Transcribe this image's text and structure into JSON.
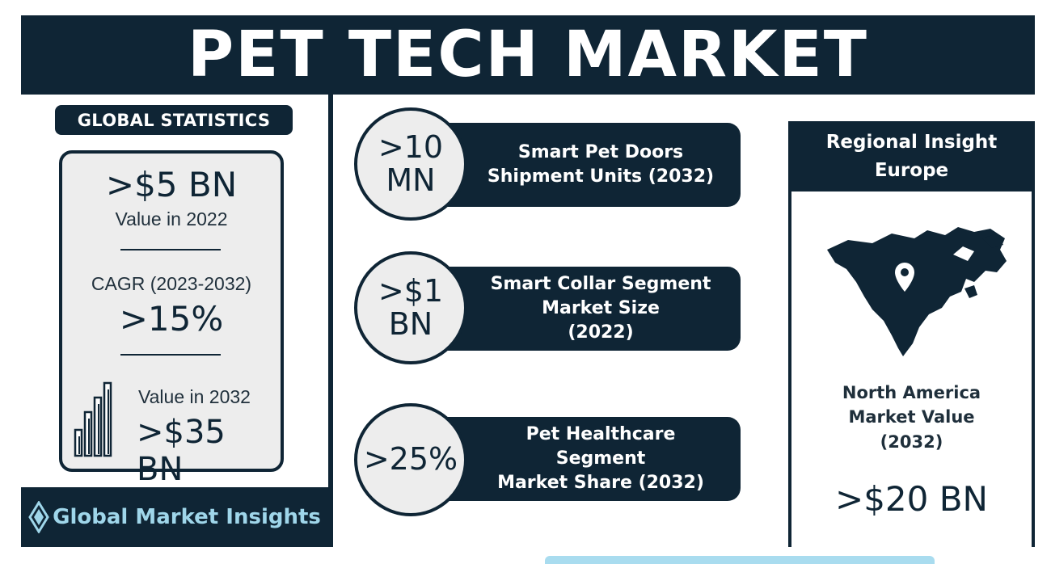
{
  "header": {
    "title": "PET TECH MARKET"
  },
  "global_statistics": {
    "badge": "GLOBAL STATISTICS",
    "value_2022": ">$5 BN",
    "value_2022_label": "Value in 2022",
    "cagr_label": "CAGR (2023-2032)",
    "cagr_value": ">15%",
    "value_2032_label": "Value in 2032",
    "value_2032": ">$35 BN"
  },
  "logo": {
    "text": "Global Market Insights"
  },
  "segments": [
    {
      "value_line1": ">10",
      "value_line2": "MN",
      "label_lines": [
        "Smart Pet Doors",
        "Shipment Units (2032)"
      ]
    },
    {
      "value_line1": ">$1",
      "value_line2": "BN",
      "label_lines": [
        "Smart Collar Segment",
        "Market Size",
        "(2022)"
      ]
    },
    {
      "value_line1": ">25%",
      "value_line2": "",
      "label_lines": [
        "Pet Healthcare",
        "Segment",
        "Market Share (2032)"
      ]
    }
  ],
  "regional": {
    "heading_line1": "Regional Insight",
    "heading_line2": "Europe",
    "region_label_lines": [
      "North America",
      "Market Value",
      "(2032)"
    ],
    "region_value": ">$20 BN"
  },
  "colors": {
    "navy": "#0f2535",
    "light_gray": "#ededed",
    "logo_blue": "#9fd6ea"
  },
  "icons": [
    "bar-chart-icon",
    "map-pin-icon",
    "diamond-logo-icon",
    "north-america-map"
  ]
}
